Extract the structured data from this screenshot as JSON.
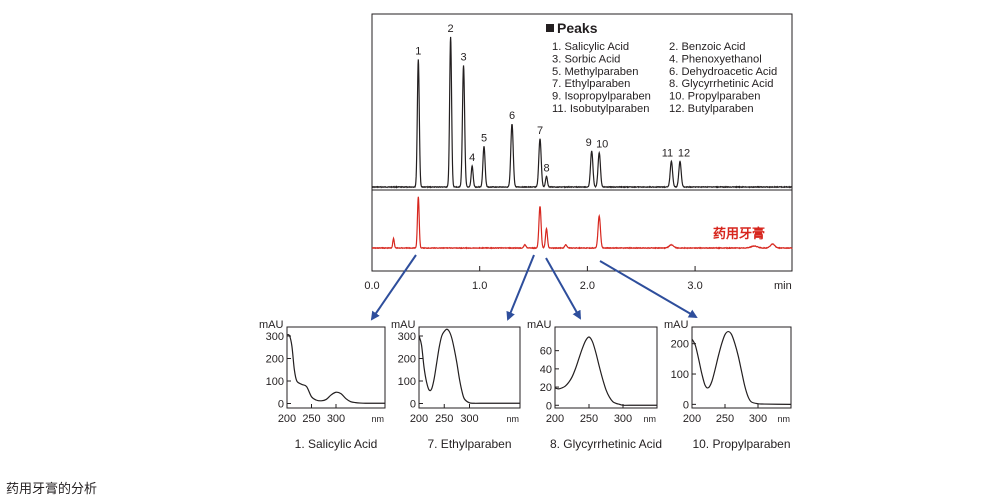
{
  "page": {
    "caption": "药用牙膏的分析"
  },
  "colors": {
    "standard_trace": "#231f20",
    "sample_trace": "#d7261e",
    "arrows": "#2e4e9c",
    "frame": "#231f20"
  },
  "chart_data": [
    {
      "type": "line",
      "chart": "chromatogram",
      "x_unit": "min",
      "xlim": [
        0.0,
        3.9
      ],
      "x_ticks": [
        "0.0",
        "1.0",
        "2.0",
        "3.0"
      ],
      "legend": {
        "title": "Peaks",
        "items": [
          "1.  Salicylic Acid",
          "2.  Benzoic Acid",
          "3.  Sorbic Acid",
          "4.  Phenoxyethanol",
          "5.  Methylparaben",
          "6.  Dehydroacetic Acid",
          "7.  Ethylparaben",
          "8.  Glycyrrhetinic Acid",
          "9.  Isopropylparaben",
          "10. Propylparaben",
          "11. Isobutylparaben",
          "12. Butylparaben"
        ]
      },
      "series": [
        {
          "name": "",
          "peaks": [
            {
              "label": "1",
              "rt": 0.43,
              "height": 0.85,
              "width": 0.009
            },
            {
              "label": "2",
              "rt": 0.73,
              "height": 1.0,
              "width": 0.009
            },
            {
              "label": "3",
              "rt": 0.85,
              "height": 0.81,
              "width": 0.01
            },
            {
              "label": "4",
              "rt": 0.93,
              "height": 0.14,
              "width": 0.009
            },
            {
              "label": "5",
              "rt": 1.04,
              "height": 0.27,
              "width": 0.01
            },
            {
              "label": "6",
              "rt": 1.3,
              "height": 0.42,
              "width": 0.011
            },
            {
              "label": "7",
              "rt": 1.56,
              "height": 0.32,
              "width": 0.011
            },
            {
              "label": "8",
              "rt": 1.62,
              "height": 0.07,
              "width": 0.009
            },
            {
              "label": "9",
              "rt": 2.04,
              "height": 0.24,
              "width": 0.011
            },
            {
              "label": "10",
              "rt": 2.11,
              "height": 0.23,
              "width": 0.011
            },
            {
              "label": "11",
              "rt": 2.78,
              "height": 0.17,
              "width": 0.011
            },
            {
              "label": "12",
              "rt": 2.86,
              "height": 0.17,
              "width": 0.011
            }
          ]
        },
        {
          "name": "药用牙膏",
          "peaks": [
            {
              "rt": 0.2,
              "height": 0.06,
              "width": 0.007
            },
            {
              "rt": 0.43,
              "height": 0.32,
              "width": 0.008
            },
            {
              "rt": 1.42,
              "height": 0.02,
              "width": 0.01
            },
            {
              "rt": 1.56,
              "height": 0.26,
              "width": 0.01
            },
            {
              "rt": 1.62,
              "height": 0.12,
              "width": 0.009
            },
            {
              "rt": 1.8,
              "height": 0.02,
              "width": 0.01
            },
            {
              "rt": 2.11,
              "height": 0.2,
              "width": 0.011
            },
            {
              "rt": 2.78,
              "height": 0.02,
              "width": 0.02
            },
            {
              "rt": 3.55,
              "height": 0.012,
              "width": 0.03
            },
            {
              "rt": 3.72,
              "height": 0.025,
              "width": 0.02
            }
          ]
        }
      ]
    },
    {
      "type": "line",
      "title": "1. Salicylic Acid",
      "ylabel": "mAU",
      "xlabel": "nm",
      "xlim": [
        200,
        400
      ],
      "ylim": [
        -20,
        340
      ],
      "x_ticks": [
        200,
        250,
        300
      ],
      "y_ticks": [
        0,
        100,
        200,
        300
      ],
      "x": [
        200,
        205,
        210,
        215,
        220,
        230,
        240,
        250,
        260,
        270,
        280,
        290,
        300,
        310,
        320,
        330,
        340,
        350,
        360,
        370,
        380,
        390,
        400
      ],
      "values": [
        305,
        302,
        255,
        150,
        100,
        85,
        75,
        30,
        15,
        12,
        18,
        38,
        50,
        44,
        22,
        8,
        4,
        2,
        1,
        1,
        1,
        1,
        1
      ]
    },
    {
      "type": "line",
      "title": "7. Ethylparaben",
      "ylabel": "mAU",
      "xlabel": "nm",
      "xlim": [
        200,
        400
      ],
      "ylim": [
        -20,
        340
      ],
      "x": [
        200,
        205,
        210,
        215,
        220,
        225,
        230,
        235,
        240,
        245,
        250,
        255,
        260,
        265,
        270,
        275,
        280,
        285,
        290,
        300,
        310,
        320,
        400
      ],
      "x_ticks": [
        200,
        250,
        300
      ],
      "y_ticks": [
        0,
        100,
        200,
        300
      ],
      "values": [
        300,
        260,
        160,
        95,
        60,
        65,
        110,
        180,
        250,
        300,
        320,
        330,
        320,
        290,
        240,
        180,
        110,
        55,
        20,
        3,
        1,
        1,
        1
      ]
    },
    {
      "type": "line",
      "title": "8. Glycyrrhetinic Acid",
      "ylabel": "mAU",
      "xlabel": "nm",
      "xlim": [
        200,
        350
      ],
      "ylim": [
        -3,
        86
      ],
      "x_ticks": [
        200,
        250,
        300
      ],
      "y_ticks": [
        0,
        20,
        40,
        60
      ],
      "x": [
        200,
        205,
        210,
        215,
        220,
        225,
        230,
        235,
        240,
        245,
        250,
        255,
        260,
        265,
        270,
        275,
        280,
        285,
        290,
        295,
        300,
        310,
        350
      ],
      "values": [
        19,
        18,
        19,
        21,
        25,
        31,
        40,
        51,
        62,
        71,
        75,
        70,
        58,
        43,
        29,
        17,
        9,
        4,
        2,
        1,
        0,
        0,
        0
      ]
    },
    {
      "type": "line",
      "title": "10. Propylparaben",
      "ylabel": "mAU",
      "xlabel": "nm",
      "xlim": [
        200,
        350
      ],
      "ylim": [
        -12,
        255
      ],
      "x_ticks": [
        200,
        250,
        300
      ],
      "y_ticks": [
        0,
        100,
        200
      ],
      "x": [
        200,
        205,
        210,
        215,
        220,
        225,
        230,
        235,
        240,
        245,
        250,
        255,
        260,
        265,
        270,
        275,
        280,
        285,
        290,
        300,
        310,
        350
      ],
      "values": [
        215,
        195,
        150,
        100,
        62,
        55,
        75,
        115,
        160,
        200,
        230,
        240,
        230,
        200,
        160,
        110,
        60,
        25,
        8,
        2,
        1,
        0
      ]
    }
  ]
}
